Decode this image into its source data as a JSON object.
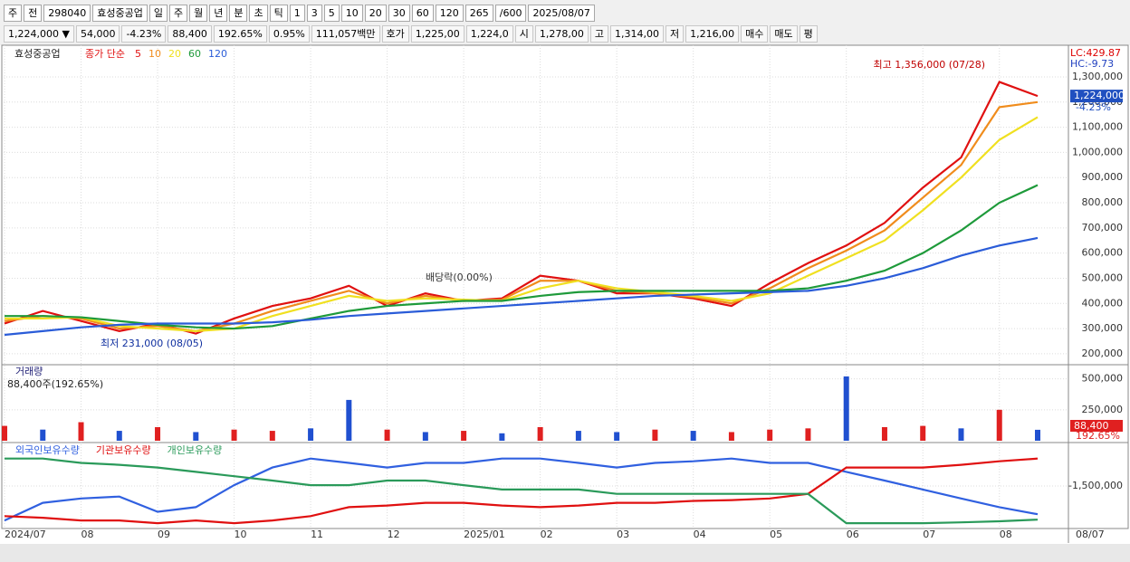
{
  "toolbar": {
    "items": [
      "주",
      "전",
      "298040",
      "효성중공업",
      "일",
      "주",
      "월",
      "년",
      "분",
      "초",
      "틱",
      "1",
      "3",
      "5",
      "10",
      "20",
      "30",
      "60",
      "120",
      "265",
      "/600",
      "2025/08/07"
    ]
  },
  "quote_bar": {
    "items": [
      "1,224,000 ▼",
      "54,000",
      "-4.23%",
      "88,400",
      "192.65%",
      "0.95%",
      "111,057백만",
      "호가",
      "1,225,00",
      "1,224,0",
      "시",
      "1,278,00",
      "고",
      "1,314,00",
      "저",
      "1,216,00",
      "매수",
      "매도",
      "평"
    ]
  },
  "x_end_label": "08/07",
  "chart_data": [
    {
      "type": "line",
      "title": "효성중공업",
      "subtitle": "종가 단순",
      "categories": [
        "2024/07",
        null,
        "08",
        null,
        "09",
        null,
        "10",
        null,
        "11",
        null,
        "12",
        null,
        "2025/01",
        null,
        "02",
        null,
        "03",
        null,
        "04",
        null,
        "05",
        null,
        "06",
        null,
        "07",
        null,
        "08",
        null
      ],
      "series": [
        {
          "name": "5",
          "color": "#e01010",
          "values": [
            320000,
            370000,
            330000,
            290000,
            320000,
            280000,
            340000,
            390000,
            420000,
            470000,
            390000,
            440000,
            410000,
            420000,
            510000,
            490000,
            440000,
            440000,
            420000,
            390000,
            480000,
            560000,
            630000,
            720000,
            860000,
            980000,
            1280000,
            1224000
          ]
        },
        {
          "name": "10",
          "color": "#f08c1c",
          "values": [
            330000,
            350000,
            340000,
            300000,
            310000,
            290000,
            320000,
            370000,
            410000,
            450000,
            400000,
            430000,
            410000,
            415000,
            490000,
            490000,
            450000,
            440000,
            425000,
            400000,
            460000,
            540000,
            610000,
            690000,
            820000,
            950000,
            1180000,
            1200000
          ]
        },
        {
          "name": "20",
          "color": "#f0e020",
          "values": [
            340000,
            340000,
            345000,
            310000,
            300000,
            290000,
            300000,
            350000,
            390000,
            430000,
            410000,
            420000,
            415000,
            410000,
            460000,
            490000,
            460000,
            445000,
            430000,
            410000,
            440000,
            510000,
            580000,
            650000,
            770000,
            900000,
            1050000,
            1140000
          ]
        },
        {
          "name": "60",
          "color": "#1e9a3a",
          "values": [
            350000,
            350000,
            345000,
            330000,
            315000,
            305000,
            300000,
            310000,
            340000,
            370000,
            390000,
            400000,
            410000,
            410000,
            430000,
            445000,
            450000,
            450000,
            450000,
            450000,
            450000,
            460000,
            490000,
            530000,
            600000,
            690000,
            800000,
            870000
          ]
        },
        {
          "name": "120",
          "color": "#2a5cd8",
          "values": [
            275000,
            290000,
            305000,
            315000,
            320000,
            320000,
            320000,
            325000,
            335000,
            350000,
            360000,
            370000,
            380000,
            390000,
            400000,
            410000,
            420000,
            430000,
            435000,
            440000,
            445000,
            450000,
            470000,
            500000,
            540000,
            590000,
            630000,
            660000
          ]
        }
      ],
      "ylim": [
        160000,
        1415000
      ],
      "yticks": [
        {
          "value": 200000,
          "label": "200,000"
        },
        {
          "value": 300000,
          "label": "300,000"
        },
        {
          "value": 400000,
          "label": "400,000"
        },
        {
          "value": 500000,
          "label": "500,000"
        },
        {
          "value": 600000,
          "label": "600,000"
        },
        {
          "value": 700000,
          "label": "700,000"
        },
        {
          "value": 800000,
          "label": "800,000"
        },
        {
          "value": 900000,
          "label": "900,000"
        },
        {
          "value": 1000000,
          "label": "1,000,000"
        },
        {
          "value": 1100000,
          "label": "1,100,000"
        },
        {
          "value": 1200000,
          "label": "1,200,000"
        },
        {
          "value": 1300000,
          "label": "1,300,000"
        }
      ],
      "grid": true,
      "annotations": [
        "최고 1,356,000 (07/28)",
        "최저 231,000 (08/05)",
        "배당락(0.00%)"
      ],
      "last_label": "1,224,000",
      "change_label": "-4.23%",
      "lc_label": "LC:429.87",
      "hc_label": "HC:-9.73"
    },
    {
      "type": "bar",
      "title": "거래량",
      "subtitle": "88,400주(192.65%)",
      "values": [
        120000,
        90000,
        150000,
        80000,
        110000,
        70000,
        90000,
        80000,
        100000,
        330000,
        90000,
        70000,
        80000,
        60000,
        110000,
        80000,
        70000,
        90000,
        80000,
        70000,
        90000,
        100000,
        520000,
        110000,
        120000,
        100000,
        250000,
        88400
      ],
      "colors": [
        "#e02020",
        "#2050d0",
        "#e02020",
        "#2050d0",
        "#e02020",
        "#2050d0",
        "#e02020",
        "#e02020",
        "#2050d0",
        "#2050d0",
        "#e02020",
        "#2050d0",
        "#e02020",
        "#2050d0",
        "#e02020",
        "#2050d0",
        "#2050d0",
        "#e02020",
        "#2050d0",
        "#e02020",
        "#e02020",
        "#e02020",
        "#2050d0",
        "#e02020",
        "#e02020",
        "#2050d0",
        "#e02020",
        "#2050d0"
      ],
      "ylim": [
        0,
        600000
      ],
      "yticks": [
        {
          "value": 250000,
          "label": "250,000"
        },
        {
          "value": 500000,
          "label": "500,000"
        }
      ],
      "last_label": "88,400",
      "change_label": "192.65%"
    },
    {
      "type": "line",
      "series": [
        {
          "name": "외국인보유수량",
          "color": "#3060e0",
          "values": [
            -2770000,
            -2120000,
            -1960000,
            -1890000,
            -2450000,
            -2280000,
            -1470000,
            -820000,
            -490000,
            -650000,
            -820000,
            -650000,
            -650000,
            -490000,
            -490000,
            -650000,
            -820000,
            -650000,
            -590000,
            -490000,
            -650000,
            -650000,
            -980000,
            -1300000,
            -1630000,
            -1960000,
            -2280000,
            -2540000
          ]
        },
        {
          "name": "기관보유수량",
          "color": "#e01010",
          "values": [
            -2610000,
            -2670000,
            -2770000,
            -2770000,
            -2870000,
            -2770000,
            -2870000,
            -2770000,
            -2610000,
            -2280000,
            -2220000,
            -2120000,
            -2120000,
            -2220000,
            -2280000,
            -2220000,
            -2120000,
            -2120000,
            -2050000,
            -2020000,
            -1960000,
            -1790000,
            -820000,
            -820000,
            -820000,
            -720000,
            -590000,
            -490000
          ]
        },
        {
          "name": "개인보유수량",
          "color": "#2a9a5a",
          "values": [
            -490000,
            -490000,
            -650000,
            -720000,
            -820000,
            -980000,
            -1140000,
            -1300000,
            -1470000,
            -1470000,
            -1300000,
            -1300000,
            -1470000,
            -1630000,
            -1630000,
            -1630000,
            -1790000,
            -1790000,
            -1790000,
            -1790000,
            -1790000,
            -1790000,
            -2870000,
            -2870000,
            -2870000,
            -2840000,
            -2800000,
            -2740000
          ]
        }
      ],
      "ylim": [
        -3000000,
        0
      ],
      "yticks": [
        {
          "value": -1500000,
          "label": "-1,500,000"
        }
      ]
    }
  ]
}
